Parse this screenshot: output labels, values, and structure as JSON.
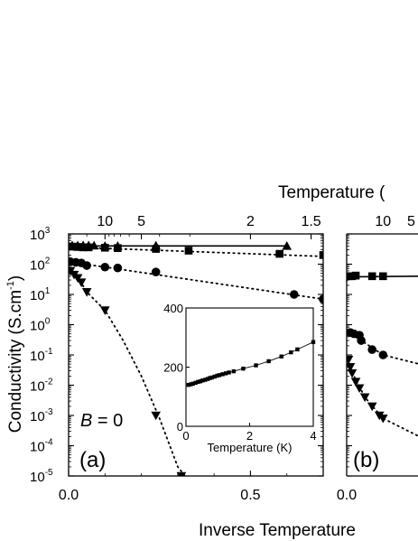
{
  "top_axis_label": "Temperature (",
  "bottom_axis_label": "Inverse Temperature",
  "ylabel": "Conductivity (S.cm",
  "ylabel_sup": "-1",
  "ylabel_close": ")",
  "panel_a": {
    "label": "(a)",
    "annotation_var": "B",
    "annotation_rest": " = 0"
  },
  "panel_b": {
    "label": "(b)"
  },
  "chart_data": [
    {
      "type": "scatter",
      "panel": "a",
      "y_scale": "log",
      "xlim": [
        0,
        0.7
      ],
      "ylim": [
        1e-05,
        1000
      ],
      "x_ticks": [
        {
          "value": 0,
          "label": "0.0"
        },
        {
          "value": 0.5,
          "label": "0.5"
        }
      ],
      "y_ticks": [
        {
          "exp": 3,
          "label": "10",
          "sup": "3"
        },
        {
          "exp": 2,
          "label": "10",
          "sup": "2"
        },
        {
          "exp": 1,
          "label": "10",
          "sup": "1"
        },
        {
          "exp": 0,
          "label": "10",
          "sup": "0"
        },
        {
          "exp": -1,
          "label": "10",
          "sup": "-1"
        },
        {
          "exp": -2,
          "label": "10",
          "sup": "-2"
        },
        {
          "exp": -3,
          "label": "10",
          "sup": "-3"
        },
        {
          "exp": -4,
          "label": "10",
          "sup": "-4"
        },
        {
          "exp": -5,
          "label": "10",
          "sup": "-5"
        }
      ],
      "top_ticks": [
        {
          "temperature": 10,
          "label": "10"
        },
        {
          "temperature": 5,
          "label": "5"
        },
        {
          "temperature": 2,
          "label": "2"
        },
        {
          "temperature": 1.5,
          "label": "1.5"
        }
      ],
      "series": [
        {
          "marker": "triangle-up",
          "line": "solid",
          "points": [
            [
              0.01,
              420
            ],
            [
              0.025,
              420
            ],
            [
              0.04,
              420
            ],
            [
              0.055,
              420
            ],
            [
              0.07,
              410
            ],
            [
              0.1,
              400
            ],
            [
              0.135,
              400
            ],
            [
              0.24,
              410
            ],
            [
              0.6,
              400
            ]
          ],
          "fit": [
            [
              0.0,
              400
            ],
            [
              0.6,
              400
            ]
          ]
        },
        {
          "marker": "square",
          "line": "dotted",
          "points": [
            [
              0.01,
              380
            ],
            [
              0.025,
              370
            ],
            [
              0.04,
              360
            ],
            [
              0.055,
              360
            ],
            [
              0.1,
              350
            ],
            [
              0.135,
              340
            ],
            [
              0.24,
              320
            ],
            [
              0.33,
              280
            ],
            [
              0.58,
              220
            ],
            [
              0.7,
              200
            ]
          ],
          "fit": [
            [
              0.0,
              370
            ],
            [
              0.7,
              180
            ]
          ]
        },
        {
          "marker": "circle",
          "line": "dotted",
          "points": [
            [
              0.005,
              120
            ],
            [
              0.02,
              115
            ],
            [
              0.035,
              110
            ],
            [
              0.05,
              90
            ],
            [
              0.1,
              80
            ],
            [
              0.135,
              75
            ],
            [
              0.24,
              55
            ],
            [
              0.62,
              10
            ],
            [
              0.7,
              7
            ]
          ],
          "fit": [
            [
              0.0,
              120
            ],
            [
              0.7,
              7
            ]
          ]
        },
        {
          "marker": "triangle-down",
          "line": "dotted",
          "points": [
            [
              0.005,
              60
            ],
            [
              0.015,
              45
            ],
            [
              0.025,
              35
            ],
            [
              0.035,
              25
            ],
            [
              0.05,
              12
            ],
            [
              0.1,
              3
            ],
            [
              0.24,
              0.001
            ],
            [
              0.31,
              1e-05
            ]
          ],
          "fit": [
            [
              0.0,
              60
            ],
            [
              0.01,
              50
            ],
            [
              0.03,
              30
            ],
            [
              0.05,
              12
            ],
            [
              0.1,
              3
            ],
            [
              0.15,
              0.3
            ],
            [
              0.2,
              0.02
            ],
            [
              0.25,
              0.0008
            ],
            [
              0.3,
              2e-05
            ],
            [
              0.32,
              1e-05
            ]
          ]
        }
      ],
      "inset": {
        "type": "line",
        "xlabel": "Temperature (K)",
        "xlim": [
          0,
          4
        ],
        "ylim": [
          0,
          400
        ],
        "x_ticks": [
          0,
          2,
          4
        ],
        "y_ticks": [
          0,
          200,
          400
        ],
        "points": [
          [
            0.08,
            140
          ],
          [
            0.15,
            142
          ],
          [
            0.22,
            144
          ],
          [
            0.3,
            147
          ],
          [
            0.38,
            150
          ],
          [
            0.45,
            152
          ],
          [
            0.52,
            155
          ],
          [
            0.6,
            157
          ],
          [
            0.68,
            160
          ],
          [
            0.75,
            163
          ],
          [
            0.82,
            165
          ],
          [
            0.9,
            168
          ],
          [
            0.98,
            171
          ],
          [
            1.05,
            173
          ],
          [
            1.15,
            176
          ],
          [
            1.25,
            179
          ],
          [
            1.35,
            182
          ],
          [
            1.5,
            186
          ],
          [
            1.8,
            195
          ],
          [
            2.2,
            206
          ],
          [
            2.6,
            220
          ],
          [
            3.0,
            236
          ],
          [
            3.3,
            250
          ],
          [
            3.5,
            260
          ],
          [
            4.0,
            285
          ]
        ]
      }
    },
    {
      "type": "scatter",
      "panel": "b",
      "y_scale": "log",
      "x_ticks": [
        {
          "value": 0,
          "label": "0.0"
        }
      ],
      "top_ticks": [
        {
          "temperature": 10,
          "label": "10"
        },
        {
          "label": "5"
        }
      ],
      "series": [
        {
          "marker": "square",
          "line": "solid"
        },
        {
          "marker": "circle",
          "line": "dotted"
        },
        {
          "marker": "triangle-down",
          "line": "dotted"
        }
      ]
    }
  ]
}
